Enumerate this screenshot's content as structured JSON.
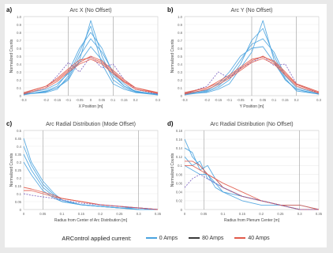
{
  "legend": {
    "caption": "ARControl applied current:",
    "entries": [
      {
        "label": "0 Amps",
        "color": "#4aa3df"
      },
      {
        "label": "80 Amps",
        "color": "#3b3b3b"
      },
      {
        "label": "40 Amps",
        "color": "#e15a4a"
      }
    ]
  },
  "chart_data": [
    {
      "panel": "a)",
      "type": "line",
      "title": "Arc X (No Offset)",
      "xlabel": "X Position [m]",
      "ylabel": "Normalized Counts",
      "xlim": [
        -0.3,
        0.3
      ],
      "ylim": [
        0,
        1.0
      ],
      "xticks": [
        "-0.3",
        "-0.2",
        "-0.15",
        "-0.1",
        "-0.05",
        "0",
        "0.05",
        "0.1",
        "0.15",
        "0.2",
        "0.3"
      ],
      "yticks": [
        "0",
        "0.1",
        "0.2",
        "0.3",
        "0.4",
        "0.5",
        "0.6",
        "0.7",
        "0.8",
        "0.9",
        "1.0"
      ],
      "vlines": [
        -0.1,
        0.1
      ],
      "series": [
        {
          "color": "#4aa3df",
          "x": [
            -0.3,
            -0.2,
            -0.15,
            -0.1,
            -0.05,
            0,
            0.05,
            0.1,
            0.15,
            0.2,
            0.3
          ],
          "y": [
            0.02,
            0.05,
            0.1,
            0.2,
            0.45,
            0.95,
            0.5,
            0.2,
            0.1,
            0.04,
            0.02
          ]
        },
        {
          "color": "#4aa3df",
          "x": [
            -0.3,
            -0.2,
            -0.15,
            -0.1,
            -0.05,
            0,
            0.05,
            0.1,
            0.15,
            0.2,
            0.3
          ],
          "y": [
            0.02,
            0.04,
            0.08,
            0.25,
            0.55,
            0.88,
            0.4,
            0.15,
            0.08,
            0.04,
            0.01
          ]
        },
        {
          "color": "#4aa3df",
          "x": [
            -0.3,
            -0.2,
            -0.15,
            -0.1,
            -0.05,
            0,
            0.05,
            0.1,
            0.15,
            0.2,
            0.3
          ],
          "y": [
            0.01,
            0.06,
            0.12,
            0.3,
            0.6,
            0.8,
            0.6,
            0.28,
            0.12,
            0.06,
            0.01
          ]
        },
        {
          "color": "#4aa3df",
          "x": [
            -0.3,
            -0.2,
            -0.15,
            -0.1,
            -0.05,
            0,
            0.05,
            0.1,
            0.15,
            0.2,
            0.3
          ],
          "y": [
            0.02,
            0.05,
            0.1,
            0.22,
            0.5,
            0.72,
            0.55,
            0.3,
            0.15,
            0.05,
            0.02
          ]
        },
        {
          "color": "#4aa3df",
          "x": [
            -0.3,
            -0.2,
            -0.15,
            -0.1,
            -0.05,
            0,
            0.05,
            0.1,
            0.15,
            0.2,
            0.3
          ],
          "y": [
            0.03,
            0.08,
            0.15,
            0.28,
            0.42,
            0.62,
            0.45,
            0.25,
            0.12,
            0.05,
            0.02
          ]
        },
        {
          "color": "#7a5fc0",
          "x": [
            -0.3,
            -0.2,
            -0.15,
            -0.1,
            -0.05,
            0,
            0.05,
            0.1,
            0.15,
            0.2,
            0.3
          ],
          "y": [
            0.02,
            0.1,
            0.25,
            0.42,
            0.3,
            0.5,
            0.35,
            0.4,
            0.2,
            0.08,
            0.02
          ]
        },
        {
          "color": "#e15a4a",
          "x": [
            -0.3,
            -0.2,
            -0.15,
            -0.1,
            -0.05,
            0,
            0.05,
            0.1,
            0.15,
            0.2,
            0.3
          ],
          "y": [
            0.03,
            0.12,
            0.2,
            0.32,
            0.42,
            0.5,
            0.44,
            0.32,
            0.2,
            0.1,
            0.03
          ]
        },
        {
          "color": "#e15a4a",
          "x": [
            -0.3,
            -0.2,
            -0.15,
            -0.1,
            -0.05,
            0,
            0.05,
            0.1,
            0.15,
            0.2,
            0.3
          ],
          "y": [
            0.02,
            0.1,
            0.18,
            0.3,
            0.4,
            0.46,
            0.4,
            0.28,
            0.17,
            0.08,
            0.03
          ]
        },
        {
          "color": "#e15a4a",
          "x": [
            -0.3,
            -0.2,
            -0.15,
            -0.1,
            -0.05,
            0,
            0.05,
            0.1,
            0.15,
            0.2,
            0.3
          ],
          "y": [
            0.04,
            0.12,
            0.22,
            0.34,
            0.45,
            0.48,
            0.42,
            0.3,
            0.18,
            0.1,
            0.04
          ]
        }
      ]
    },
    {
      "panel": "b)",
      "type": "line",
      "title": "Arc Y (No Offset)",
      "xlabel": "Y Position [m]",
      "ylabel": "Normalized Counts",
      "xlim": [
        -0.3,
        0.3
      ],
      "ylim": [
        0,
        1.0
      ],
      "xticks": [
        "-0.3",
        "-0.2",
        "-0.15",
        "-0.1",
        "-0.05",
        "0",
        "0.05",
        "0.1",
        "0.15",
        "0.2",
        "0.3"
      ],
      "yticks": [
        "0",
        "0.1",
        "0.2",
        "0.3",
        "0.4",
        "0.5",
        "0.6",
        "0.7",
        "0.8",
        "0.9",
        "1.0"
      ],
      "vlines": [
        0,
        0.2
      ],
      "series": [
        {
          "color": "#4aa3df",
          "x": [
            -0.3,
            -0.2,
            -0.15,
            -0.1,
            -0.05,
            0,
            0.05,
            0.1,
            0.15,
            0.2,
            0.3
          ],
          "y": [
            0.02,
            0.04,
            0.08,
            0.15,
            0.35,
            0.55,
            0.95,
            0.45,
            0.2,
            0.08,
            0.02
          ]
        },
        {
          "color": "#4aa3df",
          "x": [
            -0.3,
            -0.2,
            -0.15,
            -0.1,
            -0.05,
            0,
            0.05,
            0.1,
            0.15,
            0.2,
            0.3
          ],
          "y": [
            0.01,
            0.05,
            0.1,
            0.2,
            0.4,
            0.7,
            0.85,
            0.5,
            0.22,
            0.06,
            0.02
          ]
        },
        {
          "color": "#4aa3df",
          "x": [
            -0.3,
            -0.2,
            -0.15,
            -0.1,
            -0.05,
            0,
            0.05,
            0.1,
            0.15,
            0.2,
            0.3
          ],
          "y": [
            0.02,
            0.06,
            0.12,
            0.25,
            0.45,
            0.65,
            0.72,
            0.55,
            0.25,
            0.1,
            0.03
          ]
        },
        {
          "color": "#4aa3df",
          "x": [
            -0.3,
            -0.2,
            -0.15,
            -0.1,
            -0.05,
            0,
            0.05,
            0.1,
            0.15,
            0.2,
            0.3
          ],
          "y": [
            0.03,
            0.07,
            0.15,
            0.3,
            0.5,
            0.6,
            0.62,
            0.42,
            0.2,
            0.08,
            0.02
          ]
        },
        {
          "color": "#7a5fc0",
          "x": [
            -0.3,
            -0.2,
            -0.15,
            -0.1,
            -0.05,
            0,
            0.05,
            0.1,
            0.15,
            0.2,
            0.3
          ],
          "y": [
            0.02,
            0.12,
            0.3,
            0.22,
            0.35,
            0.42,
            0.5,
            0.38,
            0.4,
            0.15,
            0.03
          ]
        },
        {
          "color": "#e15a4a",
          "x": [
            -0.3,
            -0.2,
            -0.15,
            -0.1,
            -0.05,
            0,
            0.05,
            0.1,
            0.15,
            0.2,
            0.3
          ],
          "y": [
            0.03,
            0.1,
            0.16,
            0.24,
            0.34,
            0.44,
            0.5,
            0.42,
            0.28,
            0.14,
            0.04
          ]
        },
        {
          "color": "#e15a4a",
          "x": [
            -0.3,
            -0.2,
            -0.15,
            -0.1,
            -0.05,
            0,
            0.05,
            0.1,
            0.15,
            0.2,
            0.3
          ],
          "y": [
            0.02,
            0.08,
            0.14,
            0.22,
            0.32,
            0.42,
            0.47,
            0.4,
            0.26,
            0.12,
            0.03
          ]
        },
        {
          "color": "#e15a4a",
          "x": [
            -0.3,
            -0.2,
            -0.15,
            -0.1,
            -0.05,
            0,
            0.05,
            0.1,
            0.15,
            0.2,
            0.3
          ],
          "y": [
            0.04,
            0.1,
            0.18,
            0.26,
            0.36,
            0.46,
            0.49,
            0.44,
            0.3,
            0.15,
            0.05
          ]
        }
      ]
    },
    {
      "panel": "c)",
      "type": "line",
      "title": "Arc Radial Distribution (Mode Offset)",
      "xlabel": "Radius from Center of Arc Distribution [m]",
      "ylabel": "Normalized Counts",
      "xlim": [
        0,
        0.35
      ],
      "ylim": [
        0,
        0.5
      ],
      "xticks": [
        "0",
        "0.05",
        "0.1",
        "0.15",
        "0.2",
        "0.25",
        "0.3",
        "0.35"
      ],
      "yticks": [
        "0",
        "0.05",
        "0.1",
        "0.15",
        "0.2",
        "0.25",
        "0.3",
        "0.35",
        "0.4",
        "0.45",
        "0.5"
      ],
      "vlines": [
        0.05,
        0.3
      ],
      "series": [
        {
          "color": "#4aa3df",
          "x": [
            0,
            0.02,
            0.05,
            0.08,
            0.1,
            0.15,
            0.2,
            0.25,
            0.3,
            0.35
          ],
          "y": [
            0.45,
            0.3,
            0.18,
            0.1,
            0.06,
            0.03,
            0.02,
            0.01,
            0.01,
            0.0
          ]
        },
        {
          "color": "#4aa3df",
          "x": [
            0,
            0.02,
            0.05,
            0.08,
            0.1,
            0.15,
            0.2,
            0.25,
            0.3,
            0.35
          ],
          "y": [
            0.4,
            0.28,
            0.16,
            0.09,
            0.06,
            0.03,
            0.02,
            0.01,
            0.01,
            0.0
          ]
        },
        {
          "color": "#4aa3df",
          "x": [
            0,
            0.02,
            0.05,
            0.08,
            0.1,
            0.15,
            0.2,
            0.25,
            0.3,
            0.35
          ],
          "y": [
            0.35,
            0.25,
            0.14,
            0.08,
            0.05,
            0.03,
            0.02,
            0.01,
            0.0,
            0.0
          ]
        },
        {
          "color": "#4aa3df",
          "x": [
            0,
            0.02,
            0.05,
            0.08,
            0.1,
            0.15,
            0.2,
            0.25,
            0.3,
            0.35
          ],
          "y": [
            0.3,
            0.22,
            0.12,
            0.07,
            0.05,
            0.03,
            0.02,
            0.01,
            0.0,
            0.0
          ]
        },
        {
          "color": "#e15a4a",
          "x": [
            0,
            0.02,
            0.05,
            0.08,
            0.1,
            0.15,
            0.2,
            0.25,
            0.3,
            0.35
          ],
          "y": [
            0.14,
            0.13,
            0.11,
            0.09,
            0.07,
            0.05,
            0.03,
            0.02,
            0.01,
            0.0
          ]
        },
        {
          "color": "#e15a4a",
          "x": [
            0,
            0.02,
            0.05,
            0.08,
            0.1,
            0.15,
            0.2,
            0.25,
            0.3,
            0.35
          ],
          "y": [
            0.12,
            0.12,
            0.1,
            0.08,
            0.07,
            0.05,
            0.03,
            0.02,
            0.01,
            0.0
          ]
        },
        {
          "color": "#7a5fc0",
          "x": [
            0,
            0.02,
            0.05,
            0.08,
            0.1,
            0.15,
            0.2,
            0.25,
            0.3,
            0.35
          ],
          "y": [
            0.1,
            0.09,
            0.08,
            0.07,
            0.06,
            0.04,
            0.03,
            0.02,
            0.01,
            0.0
          ]
        }
      ]
    },
    {
      "panel": "d)",
      "type": "line",
      "title": "Arc Radial Distribution (No Offset)",
      "xlabel": "Radius from Plenum Center [m]",
      "ylabel": "Normalized Counts",
      "xlim": [
        0,
        0.35
      ],
      "ylim": [
        0,
        0.18
      ],
      "xticks": [
        "0",
        "0.05",
        "0.1",
        "0.15",
        "0.2",
        "0.25",
        "0.3",
        "0.35"
      ],
      "yticks": [
        "0",
        "0.02",
        "0.04",
        "0.06",
        "0.08",
        "0.1",
        "0.12",
        "0.14",
        "0.16",
        "0.18"
      ],
      "vlines": [
        0.05,
        0.3
      ],
      "series": [
        {
          "color": "#4aa3df",
          "x": [
            0,
            0.02,
            0.04,
            0.06,
            0.08,
            0.1,
            0.15,
            0.2,
            0.25,
            0.3,
            0.35
          ],
          "y": [
            0.16,
            0.12,
            0.1,
            0.08,
            0.06,
            0.05,
            0.03,
            0.02,
            0.01,
            0.01,
            0.0
          ]
        },
        {
          "color": "#4aa3df",
          "x": [
            0,
            0.02,
            0.04,
            0.06,
            0.08,
            0.1,
            0.15,
            0.2,
            0.25,
            0.3,
            0.35
          ],
          "y": [
            0.14,
            0.13,
            0.09,
            0.1,
            0.07,
            0.05,
            0.03,
            0.02,
            0.01,
            0.0,
            0.0
          ]
        },
        {
          "color": "#4aa3df",
          "x": [
            0,
            0.02,
            0.04,
            0.06,
            0.08,
            0.1,
            0.15,
            0.2,
            0.25,
            0.3,
            0.35
          ],
          "y": [
            0.12,
            0.1,
            0.11,
            0.07,
            0.06,
            0.04,
            0.03,
            0.02,
            0.01,
            0.0,
            0.0
          ]
        },
        {
          "color": "#4aa3df",
          "x": [
            0,
            0.02,
            0.04,
            0.06,
            0.08,
            0.1,
            0.15,
            0.2,
            0.25,
            0.3,
            0.35
          ],
          "y": [
            0.1,
            0.09,
            0.08,
            0.08,
            0.05,
            0.04,
            0.02,
            0.01,
            0.01,
            0.0,
            0.0
          ]
        },
        {
          "color": "#e15a4a",
          "x": [
            0,
            0.02,
            0.04,
            0.06,
            0.08,
            0.1,
            0.15,
            0.2,
            0.25,
            0.3,
            0.35
          ],
          "y": [
            0.11,
            0.11,
            0.1,
            0.08,
            0.07,
            0.06,
            0.04,
            0.02,
            0.01,
            0.01,
            0.0
          ]
        },
        {
          "color": "#e15a4a",
          "x": [
            0,
            0.02,
            0.04,
            0.06,
            0.08,
            0.1,
            0.15,
            0.2,
            0.25,
            0.3,
            0.35
          ],
          "y": [
            0.1,
            0.1,
            0.09,
            0.08,
            0.07,
            0.05,
            0.03,
            0.02,
            0.01,
            0.0,
            0.0
          ]
        },
        {
          "color": "#7a5fc0",
          "x": [
            0,
            0.02,
            0.04,
            0.06,
            0.08,
            0.1,
            0.15,
            0.2,
            0.25,
            0.3,
            0.35
          ],
          "y": [
            0.05,
            0.07,
            0.08,
            0.07,
            0.06,
            0.05,
            0.03,
            0.02,
            0.01,
            0.0,
            0.0
          ]
        }
      ]
    }
  ]
}
